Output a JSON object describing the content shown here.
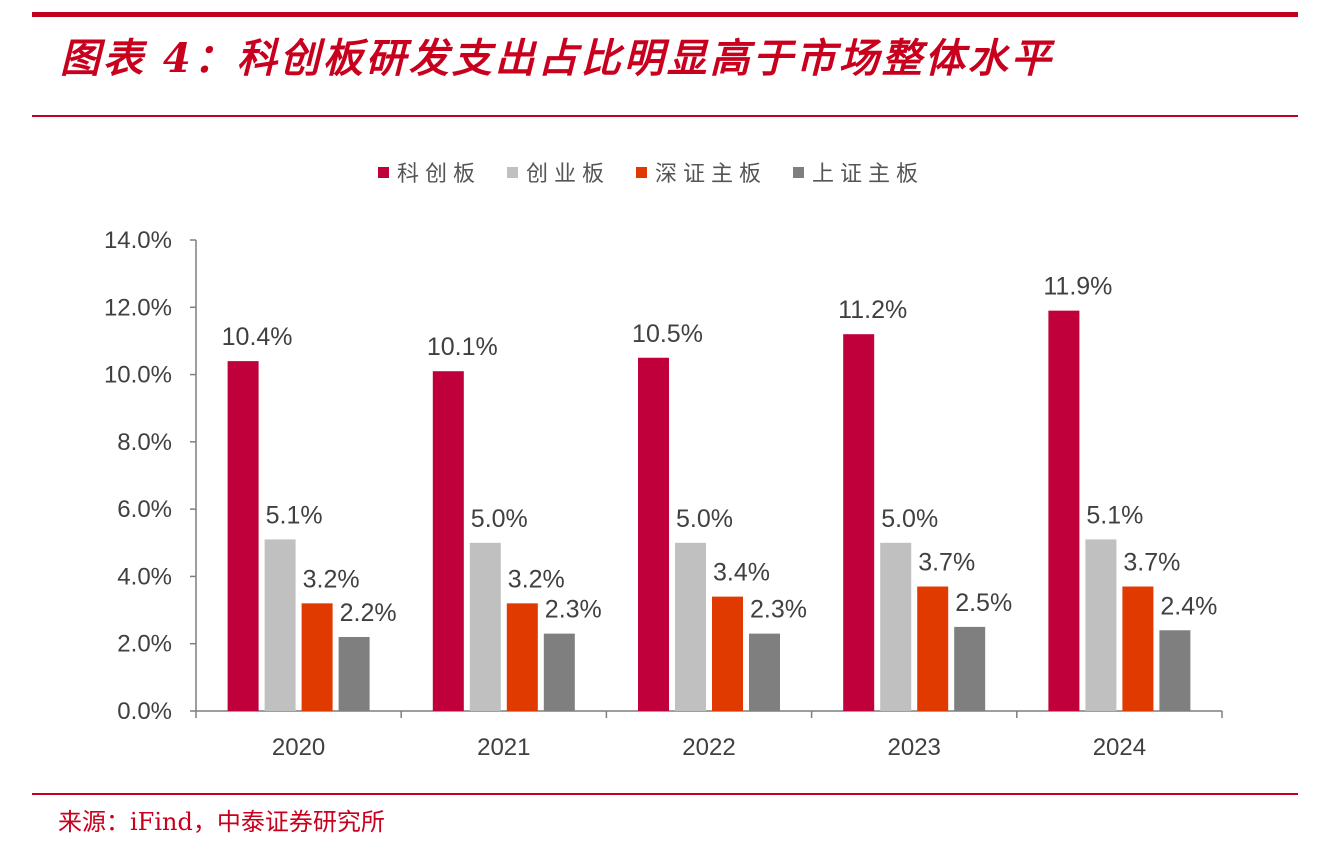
{
  "header": {
    "title": "图表 4：科创板研发支出占比明显高于市场整体水平"
  },
  "footer": {
    "source": "来源：iFind，中泰证券研究所"
  },
  "chart_data": {
    "type": "bar",
    "title": "图表 4：科创板研发支出占比明显高于市场整体水平",
    "xlabel": "",
    "ylabel": "",
    "categories": [
      "2020",
      "2021",
      "2022",
      "2023",
      "2024"
    ],
    "series": [
      {
        "name": "科创板",
        "color": "#c0003a",
        "values": [
          10.4,
          10.1,
          10.5,
          11.2,
          11.9
        ],
        "labels": [
          "10.4%",
          "10.1%",
          "10.5%",
          "11.2%",
          "11.9%"
        ]
      },
      {
        "name": "创业板",
        "color": "#c0c0c0",
        "values": [
          5.1,
          5.0,
          5.0,
          5.0,
          5.1
        ],
        "labels": [
          "5.1%",
          "5.0%",
          "5.0%",
          "5.0%",
          "5.1%"
        ]
      },
      {
        "name": "深证主板",
        "color": "#e03a00",
        "values": [
          3.2,
          3.2,
          3.4,
          3.7,
          3.7
        ],
        "labels": [
          "3.2%",
          "3.2%",
          "3.4%",
          "3.7%",
          "3.7%"
        ]
      },
      {
        "name": "上证主板",
        "color": "#7f7f7f",
        "values": [
          2.2,
          2.3,
          2.3,
          2.5,
          2.4
        ],
        "labels": [
          "2.2%",
          "2.3%",
          "2.3%",
          "2.5%",
          "2.4%"
        ]
      }
    ],
    "ylim": [
      0,
      14
    ],
    "yticks": [
      0,
      2,
      4,
      6,
      8,
      10,
      12,
      14
    ],
    "ytick_labels": [
      "0.0%",
      "2.0%",
      "4.0%",
      "6.0%",
      "8.0%",
      "10.0%",
      "12.0%",
      "14.0%"
    ],
    "grid": false,
    "legend_position": "top-center"
  }
}
